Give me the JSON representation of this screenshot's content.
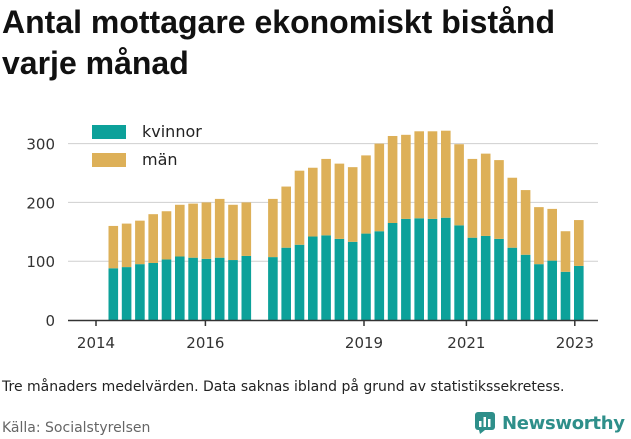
{
  "title": "Antal mottagare ekonomiskt bistånd varje månad",
  "footnote": "Tre månaders medelvärden. Data saknas ibland på grund av statistikssekretess.",
  "source": "Källa: Socialstyrelsen",
  "brand": "Newsworthy",
  "colors": {
    "kvinnor": "#0ca19a",
    "man": "#ddb058",
    "grid": "#cfcfcf",
    "brand": "#2e8f8a"
  },
  "chart_data": {
    "type": "bar",
    "stacked": true,
    "x_ticks": [
      "2014",
      "2016",
      "2019",
      "2021",
      "2023"
    ],
    "y_ticks": [
      0,
      100,
      200,
      300
    ],
    "ylim": [
      0,
      330
    ],
    "legend": [
      "kvinnor",
      "män"
    ],
    "legend_position": "top-left",
    "grid": true,
    "categories": [
      "2014-Q2",
      "2014-Q3",
      "2014-Q4",
      "2015-Q1",
      "2015-Q2",
      "2015-Q3",
      "2015-Q4",
      "2016-Q1",
      "2016-Q2",
      "2016-Q3",
      "2016-Q4",
      "2017-Q1",
      "2017-Q2",
      "2017-Q3",
      "2017-Q4",
      "2018-Q1",
      "2018-Q2",
      "2018-Q3",
      "2018-Q4",
      "2019-Q1",
      "2019-Q2",
      "2019-Q3",
      "2019-Q4",
      "2020-Q1",
      "2020-Q2",
      "2020-Q3",
      "2020-Q4",
      "2021-Q1",
      "2021-Q2",
      "2021-Q3",
      "2021-Q4",
      "2022-Q1",
      "2022-Q2",
      "2022-Q3",
      "2022-Q4",
      "2023-Q1"
    ],
    "series": [
      {
        "name": "kvinnor",
        "values": [
          88,
          90,
          95,
          97,
          103,
          108,
          106,
          104,
          106,
          102,
          109,
          null,
          107,
          123,
          128,
          142,
          144,
          138,
          133,
          147,
          151,
          165,
          172,
          173,
          172,
          174,
          161,
          140,
          143,
          138,
          123,
          111,
          95,
          101,
          82,
          92
        ]
      },
      {
        "name": "män",
        "values": [
          72,
          74,
          74,
          83,
          82,
          88,
          92,
          96,
          100,
          94,
          91,
          null,
          99,
          104,
          126,
          117,
          130,
          128,
          127,
          133,
          149,
          148,
          143,
          148,
          149,
          148,
          138,
          134,
          140,
          134,
          119,
          110,
          97,
          88,
          69,
          78
        ]
      }
    ]
  }
}
